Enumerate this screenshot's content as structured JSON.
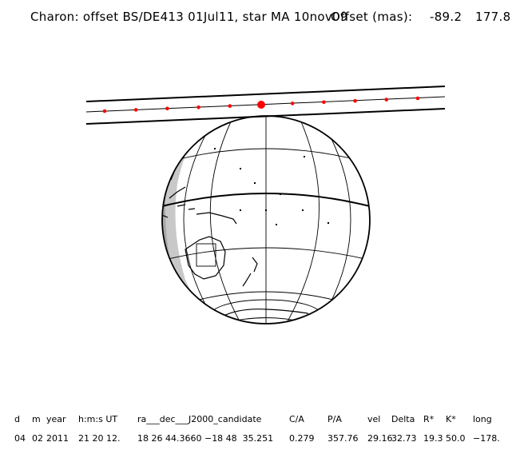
{
  "header": {
    "title": "Charon: offset BS/DE413 01Jul11, star MA 10nov09",
    "offset_label": "Offset (mas):",
    "offset_x": "-89.2",
    "offset_y": "177.8"
  },
  "map": {
    "colors": {
      "globe_day": "#ffffff",
      "globe_twilight": "#c8c8c8",
      "globe_night": "#a9a9a9",
      "shadow_path_lines": "#000000",
      "event_points": "#ff0000"
    },
    "shadow_track_points": 11,
    "highlighted_point_index": 5
  },
  "table": {
    "headers": [
      "d",
      "m",
      "year",
      "h:m:s UT",
      "ra___dec___J2000_candidate",
      "C/A",
      "P/A",
      "vel",
      "Delta",
      "R*",
      "K*",
      "long"
    ],
    "values": [
      "04",
      "02",
      "2011",
      "21 20 12.",
      "18 26 44.3660 −18 48  35.251",
      "0.279",
      "357.76",
      "29.16",
      "32.73",
      "19.3",
      "50.0",
      "−178."
    ]
  }
}
